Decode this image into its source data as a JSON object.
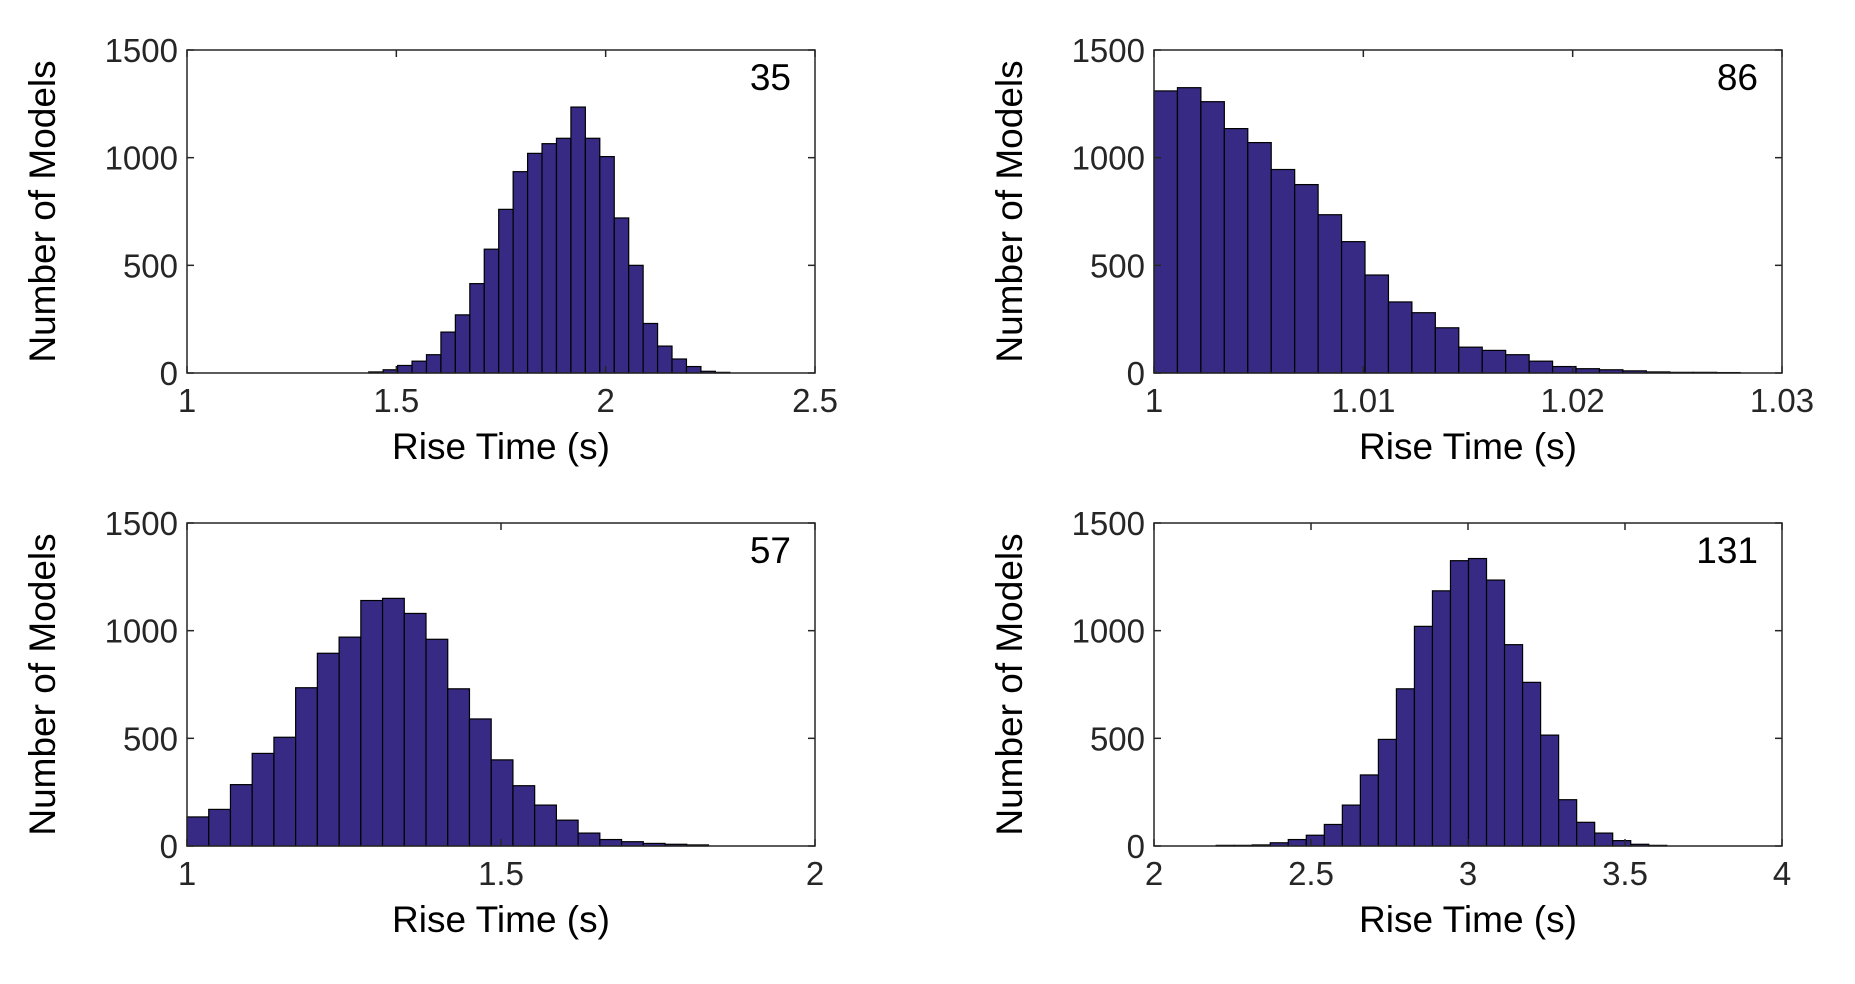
{
  "colors": {
    "bar_fill": "#362a85",
    "bar_edge": "#000000",
    "axis": "#262626",
    "background": "#ffffff"
  },
  "chart_data": [
    {
      "type": "bar",
      "annotation": "35",
      "xlabel": "Rise Time (s)",
      "ylabel": "Number of Models",
      "xlim": [
        1,
        2.5
      ],
      "ylim": [
        0,
        1500
      ],
      "xticks": [
        "1",
        "1.5",
        "2",
        "2.5"
      ],
      "yticks": [
        "0",
        "500",
        "1000",
        "1500"
      ],
      "bin_start": 1.434,
      "bin_width": 0.0345,
      "values": [
        5,
        15,
        35,
        55,
        85,
        190,
        270,
        415,
        575,
        760,
        935,
        1020,
        1065,
        1090,
        1235,
        1090,
        1005,
        720,
        500,
        230,
        125,
        65,
        30,
        8,
        3
      ]
    },
    {
      "type": "bar",
      "annotation": "86",
      "xlabel": "Rise Time (s)",
      "ylabel": "Number of Models",
      "xlim": [
        1,
        1.03
      ],
      "ylim": [
        0,
        1500
      ],
      "xticks": [
        "1",
        "1.01",
        "1.02",
        "1.03"
      ],
      "yticks": [
        "0",
        "500",
        "1000",
        "1500"
      ],
      "bin_start": 1.0,
      "bin_width": 0.00112,
      "values": [
        1310,
        1325,
        1260,
        1135,
        1070,
        945,
        875,
        735,
        610,
        455,
        330,
        280,
        210,
        120,
        105,
        85,
        55,
        30,
        20,
        15,
        10,
        5,
        3,
        3,
        2
      ]
    },
    {
      "type": "bar",
      "annotation": "57",
      "xlabel": "Rise Time (s)",
      "ylabel": "Number of Models",
      "xlim": [
        1,
        2
      ],
      "ylim": [
        0,
        1500
      ],
      "xticks": [
        "1",
        "1.5",
        "2"
      ],
      "yticks": [
        "0",
        "500",
        "1000",
        "1500"
      ],
      "bin_start": 1.0,
      "bin_width": 0.0346,
      "values": [
        135,
        170,
        285,
        430,
        505,
        735,
        895,
        970,
        1140,
        1150,
        1080,
        960,
        730,
        590,
        400,
        280,
        190,
        120,
        60,
        30,
        20,
        12,
        8,
        5
      ]
    },
    {
      "type": "bar",
      "annotation": "131",
      "xlabel": "Rise Time (s)",
      "ylabel": "Number of Models",
      "xlim": [
        2,
        4
      ],
      "ylim": [
        0,
        1500
      ],
      "xticks": [
        "2",
        "2.5",
        "3",
        "3.5",
        "4"
      ],
      "yticks": [
        "0",
        "500",
        "1000",
        "1500"
      ],
      "bin_start": 2.198,
      "bin_width": 0.0574,
      "values": [
        3,
        3,
        5,
        15,
        30,
        50,
        100,
        190,
        330,
        495,
        730,
        1020,
        1185,
        1325,
        1335,
        1235,
        935,
        760,
        515,
        215,
        110,
        60,
        25,
        8,
        3
      ]
    }
  ]
}
